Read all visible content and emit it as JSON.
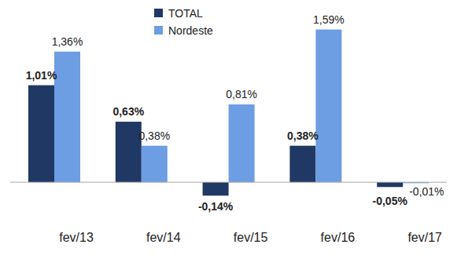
{
  "chart_data": {
    "type": "bar",
    "categories": [
      "fev/13",
      "fev/14",
      "fev/15",
      "fev/16",
      "fev/17"
    ],
    "series": [
      {
        "name": "TOTAL",
        "color": "#203864",
        "values": [
          1.01,
          0.63,
          -0.14,
          0.38,
          -0.05
        ],
        "value_labels": [
          "1,01%",
          "0,63%",
          "-0,14%",
          "0,38%",
          "-0,05%"
        ]
      },
      {
        "name": "Nordeste",
        "color": "#6d9de3",
        "values": [
          1.36,
          0.38,
          0.81,
          1.59,
          -0.01
        ],
        "value_labels": [
          "1,36%",
          "0,38%",
          "0,81%",
          "1,59%",
          "-0,01%"
        ]
      }
    ],
    "ylim": [
      -0.35,
      1.75
    ],
    "data_labels": true,
    "tick_labels": "x",
    "legend": "top"
  }
}
